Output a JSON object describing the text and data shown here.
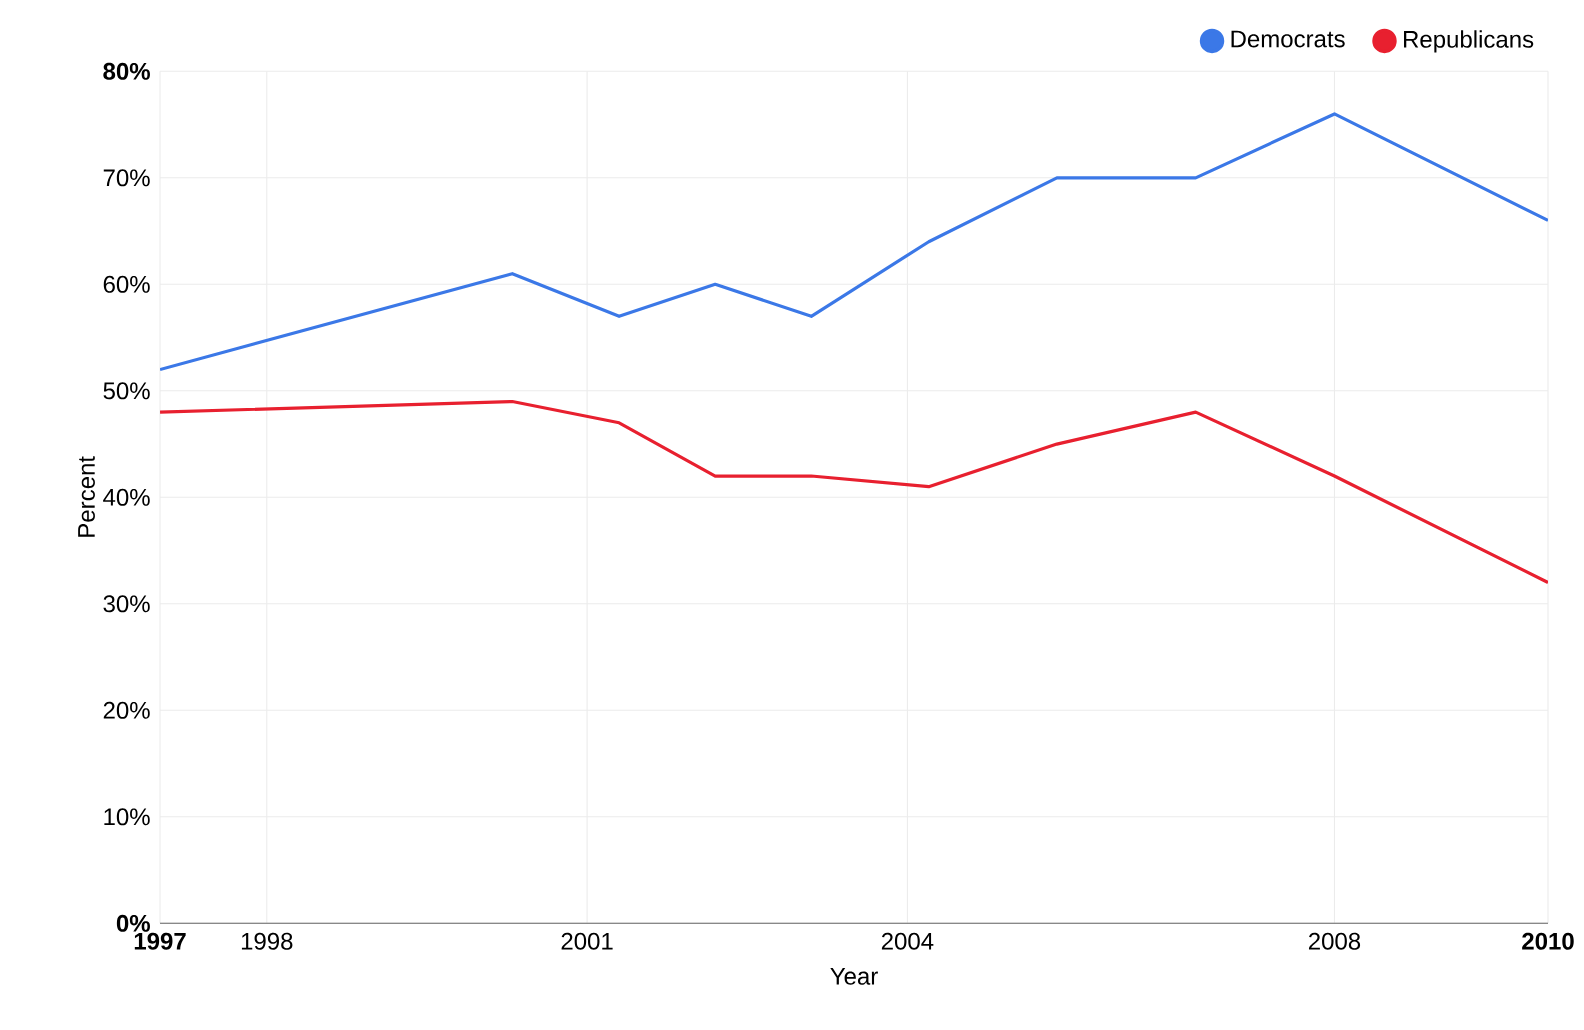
{
  "chart_data": {
    "type": "line",
    "xlabel": "Year",
    "ylabel": "Percent",
    "x": [
      1997,
      2000.3,
      2001.3,
      2002.2,
      2003.1,
      2004.2,
      2005.4,
      2006.7,
      2008.0,
      2010
    ],
    "series": [
      {
        "name": "Democrats",
        "color": "#3b78e7",
        "values": [
          52,
          61,
          57,
          60,
          57,
          64,
          70,
          70,
          76,
          66
        ]
      },
      {
        "name": "Republicans",
        "color": "#e8202f",
        "values": [
          48,
          49,
          47,
          42,
          42,
          41,
          45,
          48,
          42,
          32
        ]
      }
    ],
    "xlim": [
      1997,
      2010
    ],
    "xticks": [
      {
        "value": 1997,
        "label": "**1997**"
      },
      1998,
      2001,
      2004,
      2008,
      {
        "value": 2010,
        "label": "**2010**"
      }
    ],
    "ylim": [
      0,
      80
    ],
    "yticks": [
      {
        "value": 0,
        "label": "**0%**"
      },
      {
        "value": 10,
        "label": "10%"
      },
      {
        "value": 20,
        "label": "20%"
      },
      {
        "value": 30,
        "label": "30%"
      },
      {
        "value": 40,
        "label": "40%"
      },
      {
        "value": 50,
        "label": "50%"
      },
      {
        "value": 60,
        "label": "60%"
      },
      {
        "value": 70,
        "label": "70%"
      },
      {
        "value": 80,
        "label": "**80%**"
      }
    ],
    "grid": true,
    "legend": "top right",
    "marker": "none",
    "line_style": "solid"
  }
}
